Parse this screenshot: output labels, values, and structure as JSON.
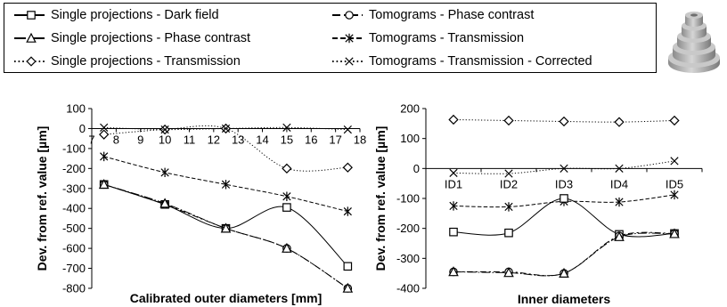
{
  "legend": [
    {
      "id": "sp-df",
      "label": "Single projections - Dark field",
      "dash": "8,0",
      "marker": "square"
    },
    {
      "id": "tomo-pc",
      "label": "Tomograms - Phase contrast",
      "dash": "9,4,3,4",
      "marker": "circle"
    },
    {
      "id": "sp-pc",
      "label": "Single projections - Phase contrast",
      "dash": "13,3,2,3",
      "marker": "triangle"
    },
    {
      "id": "tomo-tr",
      "label": "Tomograms - Transmission",
      "dash": "6,3",
      "marker": "star"
    },
    {
      "id": "sp-tr",
      "label": "Single projections - Transmission",
      "dash": "1.6,3",
      "marker": "diamond"
    },
    {
      "id": "tomo-trc",
      "label": "Tomograms - Transmission - Corrected",
      "dash": "1.6,3",
      "marker": "x"
    }
  ],
  "chart_data": [
    {
      "type": "line",
      "xlabel": "Calibrated outer diameters [mm]",
      "ylabel": "Dev. from ref. value [µm]",
      "x_ticks": [
        7,
        8,
        9,
        10,
        11,
        12,
        13,
        14,
        15,
        16,
        17,
        18
      ],
      "xlim": [
        7,
        18
      ],
      "ylim": [
        -800,
        100
      ],
      "y_ticks": [
        100,
        0,
        -100,
        -200,
        -300,
        -400,
        -500,
        -600,
        -700,
        -800
      ],
      "x": [
        7.5,
        10,
        12.5,
        15,
        17.5
      ],
      "series": [
        {
          "name": "Single projections - Transmission",
          "values": [
            -30,
            -5,
            0,
            -200,
            -195
          ]
        },
        {
          "name": "Tomograms - Transmission - Corrected",
          "values": [
            5,
            -5,
            0,
            5,
            -5
          ]
        },
        {
          "name": "Tomograms - Transmission",
          "values": [
            -140,
            -220,
            -280,
            -340,
            -415
          ]
        },
        {
          "name": "Single projections - Dark field",
          "values": [
            -280,
            -380,
            -500,
            -395,
            -690
          ]
        },
        {
          "name": "Tomograms - Phase contrast",
          "values": [
            -280,
            -380,
            -500,
            -600,
            -800
          ]
        },
        {
          "name": "Single projections - Phase contrast",
          "values": [
            -280,
            -375,
            -500,
            -600,
            -800
          ]
        }
      ]
    },
    {
      "type": "line",
      "xlabel": "Inner diameters",
      "ylabel": "Dev. from ref. value [µm]",
      "categories": [
        "ID1",
        "ID2",
        "ID3",
        "ID4",
        "ID5"
      ],
      "ylim": [
        -400,
        200
      ],
      "y_ticks": [
        200,
        100,
        0,
        -100,
        -200,
        -300,
        -400
      ],
      "series": [
        {
          "name": "Single projections - Transmission",
          "values": [
            163,
            160,
            157,
            155,
            160
          ]
        },
        {
          "name": "Tomograms - Transmission - Corrected",
          "values": [
            -15,
            -17,
            0,
            0,
            25
          ]
        },
        {
          "name": "Tomograms - Transmission",
          "values": [
            -125,
            -128,
            -110,
            -112,
            -88
          ]
        },
        {
          "name": "Single projections - Dark field",
          "values": [
            -212,
            -215,
            -100,
            -220,
            -217
          ]
        },
        {
          "name": "Tomograms - Phase contrast",
          "values": [
            -345,
            -345,
            -350,
            -225,
            -217
          ]
        },
        {
          "name": "Single projections - Phase contrast",
          "values": [
            -345,
            -348,
            -350,
            -228,
            -218
          ]
        }
      ]
    }
  ]
}
